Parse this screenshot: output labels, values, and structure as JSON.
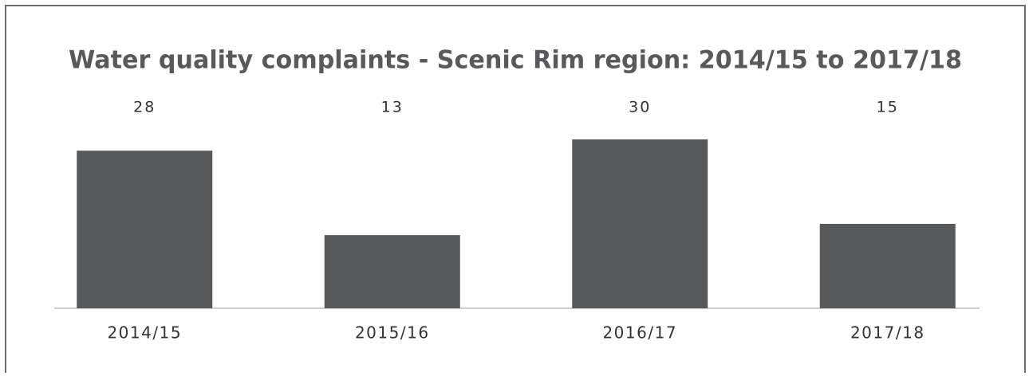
{
  "chart_data": {
    "type": "bar",
    "title": "Water quality complaints - Scenic Rim region: 2014/15 to 2017/18",
    "categories": [
      "2014/15",
      "2015/16",
      "2016/17",
      "2017/18"
    ],
    "values": [
      28,
      13,
      30,
      15
    ],
    "color": "#58595b"
  }
}
